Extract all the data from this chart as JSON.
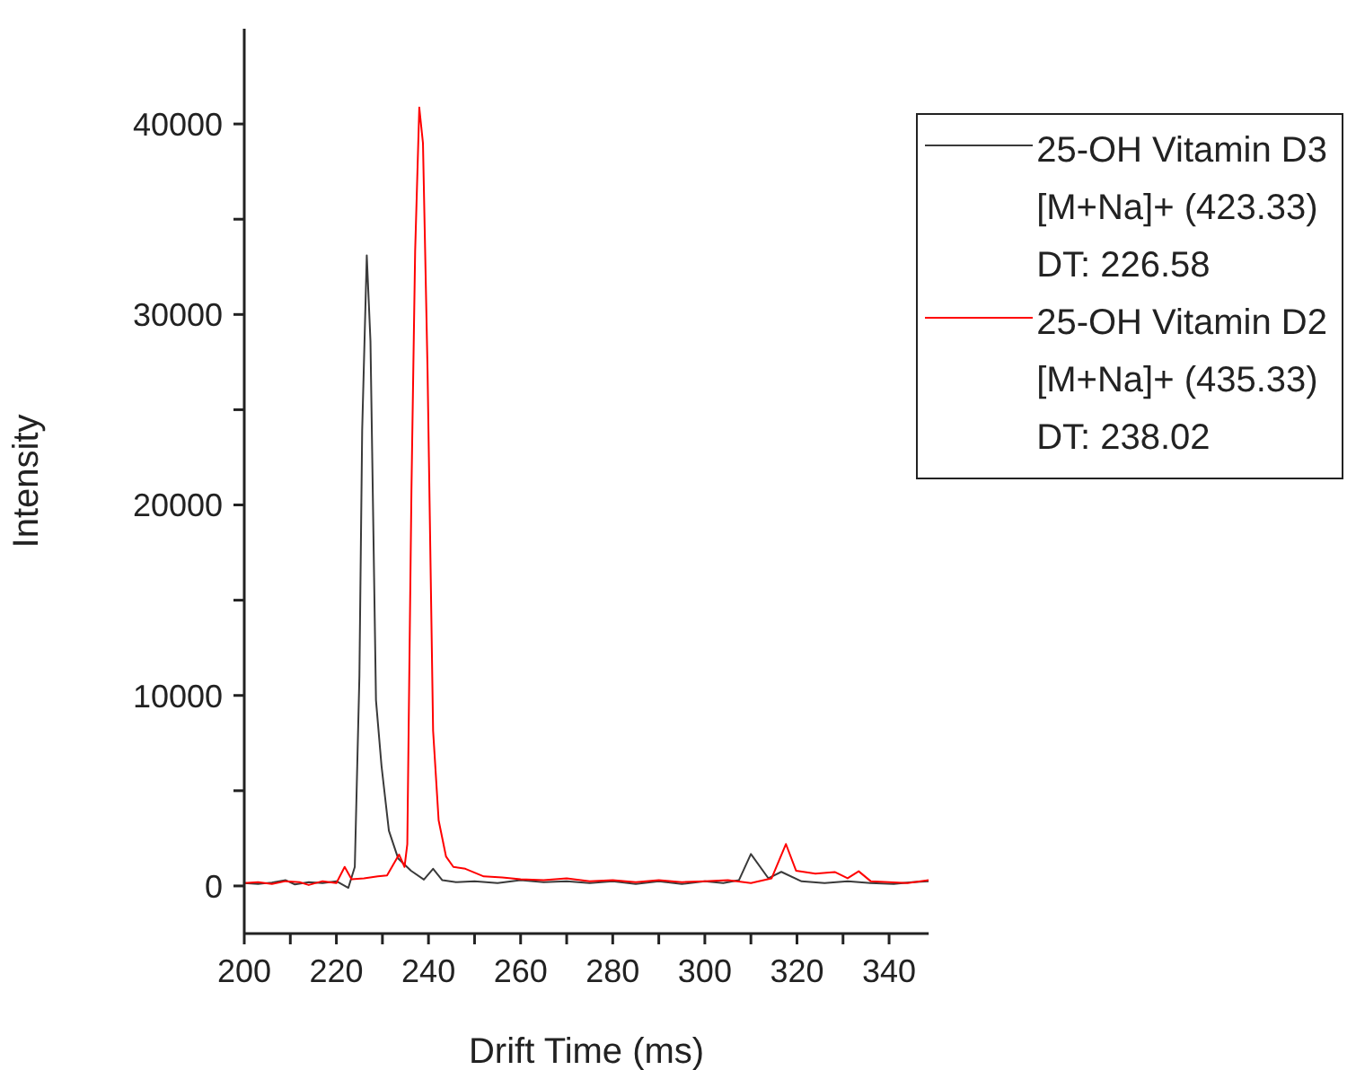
{
  "chart_data": {
    "type": "line",
    "xlabel": "Drift Time (ms)",
    "ylabel": "Intensity",
    "xlim": [
      200,
      348.6
    ],
    "ylim": [
      -2500,
      45000
    ],
    "xticks": [
      200,
      {
        "value": 210,
        "label": null
      },
      220,
      {
        "value": 230,
        "label": null
      },
      240,
      {
        "value": 250,
        "label": null
      },
      260,
      {
        "value": 270,
        "label": null
      },
      280,
      {
        "value": 290,
        "label": null
      },
      300,
      {
        "value": 310,
        "label": null
      },
      320,
      {
        "value": 330,
        "label": null
      },
      340
    ],
    "yticks": [
      0,
      {
        "value": 5000,
        "label": null
      },
      10000,
      {
        "value": 15000,
        "label": null
      },
      20000,
      {
        "value": 25000,
        "label": null
      },
      30000,
      {
        "value": 35000,
        "label": null
      },
      40000
    ],
    "grid": false,
    "legend": "top right",
    "marker": "none",
    "line_style": "solid",
    "series": [
      {
        "name": "25-OH Vitamin D3\n[M+Na]+ (423.33)\nDT: 226.58",
        "color": "#3a3a3a",
        "x": [
          200,
          203,
          206,
          209,
          211,
          214,
          217,
          220,
          222.6,
          224,
          225,
          225.6,
          226.6,
          227.4,
          228.6,
          229.8,
          231.4,
          233.4,
          236.2,
          239,
          241,
          243,
          246,
          250,
          255,
          260,
          265,
          270,
          275,
          280,
          285,
          290,
          295,
          300,
          304,
          307.4,
          310,
          313.8,
          316.6,
          321,
          326,
          331,
          336,
          341,
          345,
          348.6
        ],
        "values": [
          150,
          100,
          180,
          300,
          80,
          200,
          150,
          250,
          -100,
          1000,
          11000,
          23900,
          33100,
          28600,
          9750,
          6300,
          2900,
          1450,
          800,
          330,
          900,
          300,
          200,
          250,
          150,
          300,
          200,
          250,
          150,
          250,
          100,
          250,
          100,
          250,
          150,
          300,
          1680,
          400,
          740,
          240,
          150,
          250,
          150,
          100,
          200,
          250
        ]
      },
      {
        "name": "25-OH Vitamin D2\n[M+Na]+ (435.33)\nDT: 238.02",
        "color": "#ff0000",
        "x": [
          200,
          203,
          206,
          209,
          212,
          214,
          217,
          220,
          221.8,
          223.3,
          226,
          229,
          231,
          233.6,
          234.8,
          235.4,
          236.3,
          237.1,
          238,
          238.8,
          239.8,
          241,
          242.2,
          243.8,
          245.4,
          248,
          252,
          256,
          260,
          265,
          270,
          275,
          280,
          285,
          290,
          295,
          300,
          305,
          310,
          314.5,
          317.6,
          319.8,
          324,
          328.2,
          331,
          333.4,
          336,
          340,
          344,
          348.6
        ],
        "values": [
          150,
          200,
          100,
          250,
          200,
          50,
          250,
          150,
          1000,
          350,
          400,
          500,
          550,
          1650,
          1000,
          2200,
          20800,
          33300,
          40860,
          39000,
          27000,
          8150,
          3450,
          1550,
          1000,
          900,
          500,
          450,
          350,
          300,
          400,
          250,
          300,
          200,
          300,
          200,
          250,
          300,
          150,
          400,
          2200,
          800,
          650,
          730,
          400,
          770,
          250,
          200,
          150,
          300
        ]
      }
    ]
  }
}
